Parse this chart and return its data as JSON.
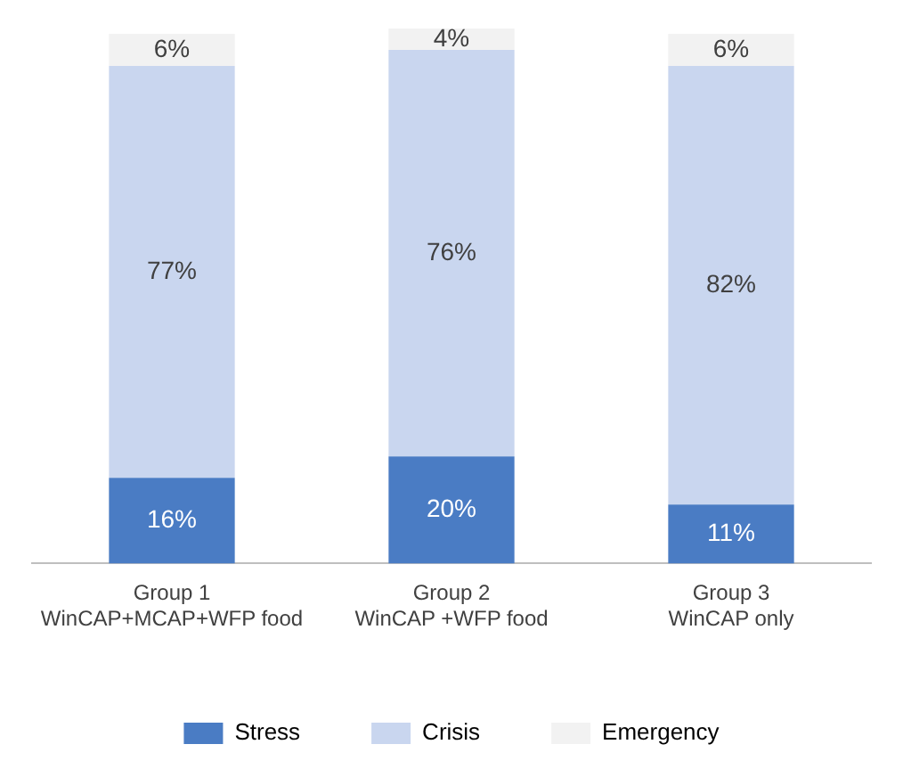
{
  "chart_data": {
    "type": "bar",
    "stacked": true,
    "categories": [
      "Group 1\nWinCAP+MCAP+WFP food",
      "Group 2\nWinCAP +WFP food",
      "Group 3\nWinCAP only"
    ],
    "series": [
      {
        "name": "Stress",
        "color": "#4a7cc4",
        "values": [
          16,
          20,
          11
        ],
        "value_labels": [
          "16%",
          "20%",
          "11%"
        ]
      },
      {
        "name": "Crisis",
        "color": "#c9d6ef",
        "values": [
          77,
          76,
          82
        ],
        "value_labels": [
          "77%",
          "76%",
          "82%"
        ]
      },
      {
        "name": "Emergency",
        "color": "#f2f2f2",
        "values": [
          6,
          4,
          6
        ],
        "value_labels": [
          "6%",
          "4%",
          "6%"
        ]
      }
    ],
    "grid": false,
    "legend": "bottom"
  }
}
